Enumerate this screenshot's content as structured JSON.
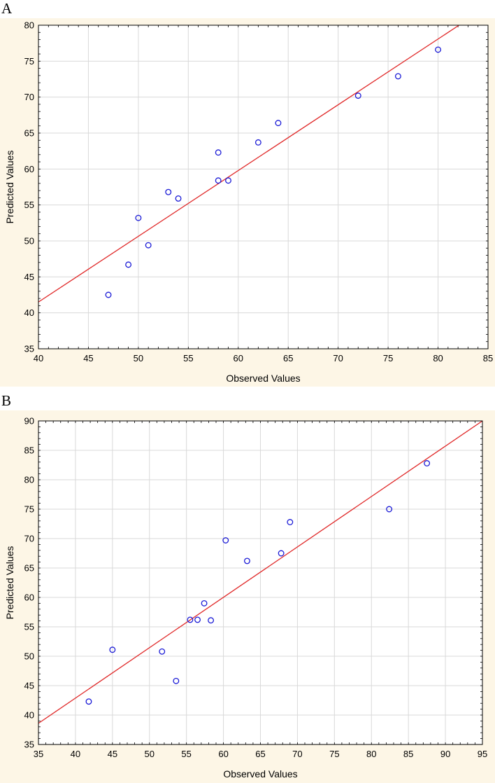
{
  "chart_data": [
    {
      "panel": "A",
      "type": "scatter",
      "title": "",
      "xlabel": "Observed Values",
      "ylabel": "Predicted Values",
      "xlim": [
        40,
        85
      ],
      "ylim": [
        35,
        80
      ],
      "xticks": [
        40,
        45,
        50,
        55,
        60,
        65,
        70,
        75,
        80,
        85
      ],
      "yticks": [
        35,
        40,
        45,
        50,
        55,
        60,
        65,
        70,
        75,
        80
      ],
      "grid": true,
      "points": {
        "x": [
          47,
          49,
          50,
          51,
          53,
          54,
          58,
          58,
          59,
          62,
          64,
          72,
          76,
          80
        ],
        "y": [
          42.5,
          46.7,
          53.2,
          49.4,
          56.8,
          55.9,
          62.3,
          58.4,
          58.4,
          63.7,
          66.4,
          70.2,
          72.9,
          76.6
        ]
      },
      "fit_line": {
        "x": [
          40,
          82.1
        ],
        "y": [
          41.5,
          80
        ]
      },
      "colors": {
        "points": "#1a1ad6",
        "line": "#e02828",
        "grid": "#d9d9d9",
        "plot_bg": "#ffffff"
      }
    },
    {
      "panel": "B",
      "type": "scatter",
      "title": "",
      "xlabel": "Observed Values",
      "ylabel": "Predicted Values",
      "xlim": [
        35,
        95
      ],
      "ylim": [
        35,
        90
      ],
      "xticks": [
        35,
        40,
        45,
        50,
        55,
        60,
        65,
        70,
        75,
        80,
        85,
        90,
        95
      ],
      "yticks": [
        35,
        40,
        45,
        50,
        55,
        60,
        65,
        70,
        75,
        80,
        85,
        90
      ],
      "grid": true,
      "points": {
        "x": [
          41.8,
          45,
          51.7,
          53.6,
          55.5,
          56.5,
          57.4,
          58.3,
          60.3,
          63.2,
          67.8,
          69,
          82.4,
          87.5
        ],
        "y": [
          42.3,
          51.1,
          50.8,
          45.8,
          56.2,
          56.2,
          59,
          56.1,
          69.7,
          66.2,
          67.5,
          72.8,
          75,
          82.8
        ]
      },
      "fit_line": {
        "x": [
          35,
          95
        ],
        "y": [
          38.6,
          90
        ]
      },
      "colors": {
        "points": "#1a1ad6",
        "line": "#e02828",
        "grid": "#d9d9d9",
        "plot_bg": "#ffffff"
      }
    }
  ],
  "panel_labels": {
    "a": "A",
    "b": "B"
  }
}
